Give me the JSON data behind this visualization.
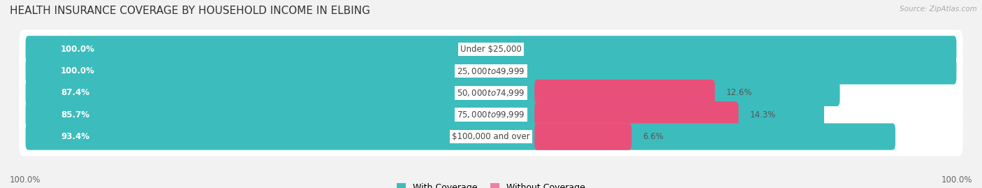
{
  "title": "HEALTH INSURANCE COVERAGE BY HOUSEHOLD INCOME IN ELBING",
  "source": "Source: ZipAtlas.com",
  "categories": [
    "Under $25,000",
    "$25,000 to $49,999",
    "$50,000 to $74,999",
    "$75,000 to $99,999",
    "$100,000 and over"
  ],
  "with_coverage": [
    100.0,
    100.0,
    87.4,
    85.7,
    93.4
  ],
  "without_coverage": [
    0.0,
    0.0,
    12.6,
    14.3,
    6.6
  ],
  "color_with": "#3dbcbd",
  "color_without": "#f07fa8",
  "color_without_bright": "#e8507a",
  "bg_color": "#f2f2f2",
  "row_bg_color": "#e8e8e8",
  "title_fontsize": 11,
  "label_fontsize": 8.5,
  "pct_fontsize": 8.5,
  "tick_fontsize": 8.5,
  "legend_fontsize": 9,
  "bottom_left_label": "100.0%",
  "bottom_right_label": "100.0%"
}
